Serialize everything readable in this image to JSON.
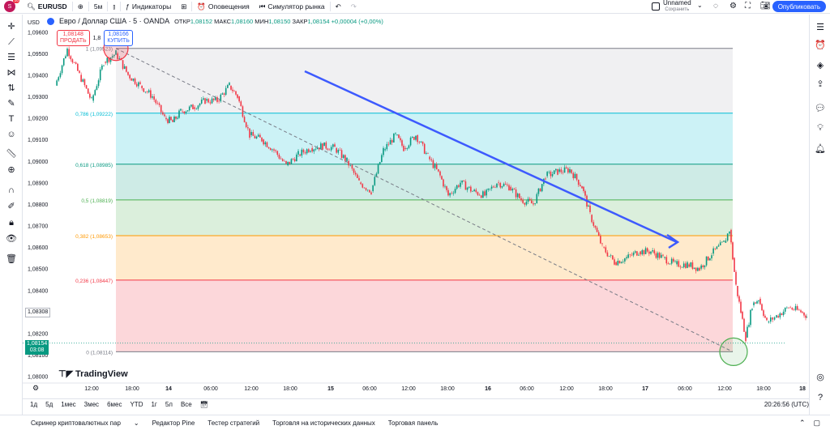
{
  "topbar": {
    "avatar_initial": "S",
    "avatar_badge": "10",
    "symbol": "EURUSD",
    "interval": "5м",
    "indicators": "Индикаторы",
    "alerts": "Оповещения",
    "replay": "Симулятор рынка",
    "layout_name": "Unnamed",
    "layout_status": "Сохранить",
    "publish": "Опубликовать"
  },
  "legend": {
    "title": "Евро / Доллар США · 5 · OANDA",
    "open_label": "ОТКР",
    "open": "1,08152",
    "high_label": "МАКС",
    "high": "1,08160",
    "low_label": "МИН",
    "low": "1,08150",
    "close_label": "ЗАКР",
    "close": "1,08154",
    "change": "+0,00004 (+0,00%)",
    "sell_price": "1,08148",
    "sell_label": "ПРОДАТЬ",
    "spread": "1,8",
    "buy_price": "1,08166",
    "buy_label": "КУПИТЬ"
  },
  "currency": "USD",
  "chart_data": {
    "type": "candlestick",
    "y_ticks": [
      "1,09600",
      "1,09500",
      "1,09400",
      "1,09300",
      "1,09200",
      "1,09100",
      "1,09000",
      "1,08900",
      "1,08800",
      "1,08700",
      "1,08600",
      "1,08500",
      "1,08400",
      "1,08300",
      "1,08200",
      "1,08100",
      "1,08000"
    ],
    "y_values": [
      1.096,
      1.095,
      1.094,
      1.093,
      1.092,
      1.091,
      1.09,
      1.089,
      1.088,
      1.087,
      1.086,
      1.085,
      1.084,
      1.083,
      1.082,
      1.081,
      1.08
    ],
    "x_ticks": [
      "12:00",
      "18:00",
      "14",
      "06:00",
      "12:00",
      "18:00",
      "15",
      "06:00",
      "12:00",
      "18:00",
      "16",
      "06:00",
      "12:00",
      "18:00",
      "17",
      "06:00",
      "12:00",
      "18:00",
      "18"
    ],
    "ylim": [
      1.0798,
      1.0968
    ],
    "fib_levels": [
      {
        "label": "1 (1,09523)",
        "value": 1.09523,
        "color": "#787b86"
      },
      {
        "label": "0,786 (1,09222)",
        "value": 1.09222,
        "color": "#00bcd4"
      },
      {
        "label": "0,618 (1,08985)",
        "value": 1.08985,
        "color": "#089981"
      },
      {
        "label": "0,5 (1,08819)",
        "value": 1.08819,
        "color": "#4caf50"
      },
      {
        "label": "0,382 (1,08653)",
        "value": 1.08653,
        "color": "#ff9800"
      },
      {
        "label": "0,236 (1,08447)",
        "value": 1.08447,
        "color": "#f23645"
      },
      {
        "label": "0 (1,08114)",
        "value": 1.08114,
        "color": "#787b86"
      }
    ],
    "price_marks": [
      {
        "label": "1,08308",
        "value": 1.08308
      },
      {
        "label": "1,08154",
        "value": 1.08154,
        "timer": "03:08"
      }
    ]
  },
  "periods": [
    "1д",
    "5д",
    "1мес",
    "3мес",
    "6мес",
    "YTD",
    "1г",
    "5л",
    "Все"
  ],
  "clock": "20:26:56 (UTC)",
  "bottom": [
    "Скринер криптовалютных пар",
    "Редактор Pine",
    "Тестер стратегий",
    "Торговля на исторических данных",
    "Торговая панель"
  ],
  "logo_text": "TradingView",
  "colors": {
    "up": "#089981",
    "down": "#f23645",
    "accent": "#2962ff"
  }
}
